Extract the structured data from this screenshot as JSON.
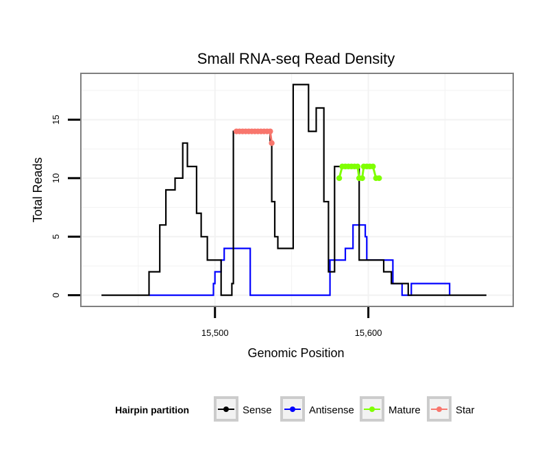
{
  "chart_data": {
    "type": "line",
    "title": "Small RNA-seq Read Density",
    "xlabel": "Genomic Position",
    "ylabel": "Total Reads",
    "xlim": [
      15413,
      15694
    ],
    "ylim": [
      -0.9,
      18.9
    ],
    "x_ticks": [
      {
        "value": 15500,
        "label": "15,500"
      },
      {
        "value": 15600,
        "label": "15,600"
      }
    ],
    "y_ticks": [
      {
        "value": 0,
        "label": "0"
      },
      {
        "value": 5,
        "label": "5"
      },
      {
        "value": 10,
        "label": "10"
      },
      {
        "value": 15,
        "label": "15"
      }
    ],
    "grid": true,
    "legend": {
      "title": "Hairpin partition",
      "position": "bottom",
      "entries": [
        {
          "label": "Sense",
          "color": "#000000"
        },
        {
          "label": "Antisense",
          "color": "#0000ff"
        },
        {
          "label": "Mature",
          "color": "#7fff00"
        },
        {
          "label": "Star",
          "color": "#f8766d"
        }
      ]
    },
    "series": [
      {
        "name": "Sense",
        "color": "#000000",
        "style": "line",
        "x": [
          15426,
          15457,
          15457,
          15460,
          15460,
          15464,
          15464,
          15465,
          15465,
          15468,
          15468,
          15472,
          15472,
          15474,
          15474,
          15479,
          15479,
          15482,
          15482,
          15484,
          15484,
          15488,
          15488,
          15491,
          15491,
          15495,
          15495,
          15499,
          15499,
          15504,
          15504,
          15506,
          15506,
          15511,
          15511,
          15512,
          15512,
          15514,
          15514,
          15536,
          15536,
          15537,
          15537,
          15539,
          15539,
          15541,
          15541,
          15542,
          15542,
          15546,
          15546,
          15551,
          15551,
          15552,
          15552,
          15561,
          15561,
          15566,
          15566,
          15571,
          15571,
          15574,
          15574,
          15576,
          15576,
          15578,
          15578,
          15579,
          15579,
          15581,
          15581,
          15594,
          15594,
          15607,
          15607,
          15610,
          15610,
          15615,
          15615,
          15619,
          15619,
          15626,
          15626,
          15628,
          15628,
          15636,
          15636,
          15640,
          15640,
          15677
        ],
        "y": [
          0,
          0,
          2,
          2,
          2,
          2,
          6,
          6,
          6,
          6,
          9,
          9,
          9,
          9,
          10,
          10,
          13,
          13,
          11,
          11,
          11,
          11,
          7,
          7,
          5,
          5,
          3,
          3,
          3,
          3,
          0,
          0,
          0,
          0,
          1,
          1,
          14,
          14,
          14,
          14,
          13,
          13,
          8,
          8,
          5,
          5,
          4,
          4,
          4,
          4,
          4,
          4,
          18,
          18,
          18,
          18,
          14,
          14,
          16,
          16,
          8,
          8,
          2,
          2,
          2,
          2,
          11,
          11,
          11,
          11,
          11,
          11,
          3,
          3,
          3,
          3,
          2,
          2,
          1,
          1,
          1,
          1,
          0,
          0,
          0,
          0,
          0,
          0,
          0,
          0
        ]
      },
      {
        "name": "Antisense",
        "color": "#0000ff",
        "style": "line",
        "x": [
          15457,
          15499,
          15499,
          15500,
          15500,
          15504,
          15504,
          15506,
          15506,
          15523,
          15523,
          15575,
          15575,
          15585,
          15585,
          15590,
          15590,
          15598,
          15598,
          15599,
          15599,
          15603,
          15603,
          15616,
          15616,
          15622,
          15622,
          15628,
          15628,
          15630,
          15630,
          15634,
          15634,
          15653,
          15653
        ],
        "y": [
          0,
          0,
          1,
          1,
          2,
          2,
          3,
          3,
          4,
          4,
          0,
          0,
          3,
          3,
          4,
          4,
          6,
          6,
          5,
          5,
          3,
          3,
          3,
          3,
          1,
          1,
          0,
          0,
          1,
          1,
          1,
          1,
          1,
          1,
          0
        ]
      },
      {
        "name": "Mature",
        "color": "#7fff00",
        "style": "points",
        "x": [
          15581,
          15583,
          15585,
          15587,
          15589,
          15591,
          15593,
          15594,
          15596,
          15597,
          15599,
          15601,
          15603,
          15605,
          15607
        ],
        "y": [
          10,
          11,
          11,
          11,
          11,
          11,
          11,
          10,
          10,
          11,
          11,
          11,
          11,
          10,
          10
        ]
      },
      {
        "name": "Star",
        "color": "#f8766d",
        "style": "points",
        "x": [
          15514,
          15516,
          15518,
          15520,
          15522,
          15524,
          15526,
          15528,
          15530,
          15532,
          15534,
          15536,
          15537
        ],
        "y": [
          14,
          14,
          14,
          14,
          14,
          14,
          14,
          14,
          14,
          14,
          14,
          14,
          13
        ]
      }
    ]
  }
}
